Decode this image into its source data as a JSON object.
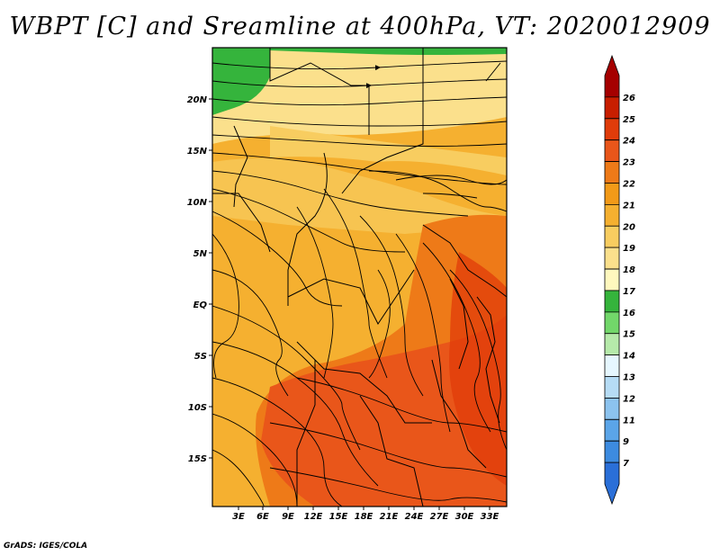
{
  "title": "WBPT [C] and Sreamline at 400hPa, VT: 2020012909",
  "credit": "GrADS: IGES/COLA",
  "map": {
    "lat_ticks": [
      "20N",
      "15N",
      "10N",
      "5N",
      "EQ",
      "5S",
      "10S",
      "15S"
    ],
    "lon_ticks": [
      "3E",
      "6E",
      "9E",
      "12E",
      "15E",
      "18E",
      "21E",
      "24E",
      "27E",
      "30E",
      "33E"
    ],
    "field": "WBPT",
    "units": "C",
    "level": "400hPa"
  },
  "colorbar": {
    "labels": [
      "26",
      "25",
      "24",
      "23",
      "22",
      "21",
      "20",
      "19",
      "18",
      "17",
      "16",
      "15",
      "14",
      "13",
      "12",
      "11",
      "9",
      "7"
    ],
    "colors": [
      "#a50000",
      "#c81e00",
      "#e03c0a",
      "#e9561a",
      "#ee7a18",
      "#f29a18",
      "#f5b030",
      "#f8cd60",
      "#fbe08c",
      "#fff8be",
      "#35b43c",
      "#72d76a",
      "#b6eaaa",
      "#e6f7ff",
      "#b6dcf5",
      "#8cc3ef",
      "#5ba5e8",
      "#3d8be0",
      "#2a6fd8"
    ]
  }
}
